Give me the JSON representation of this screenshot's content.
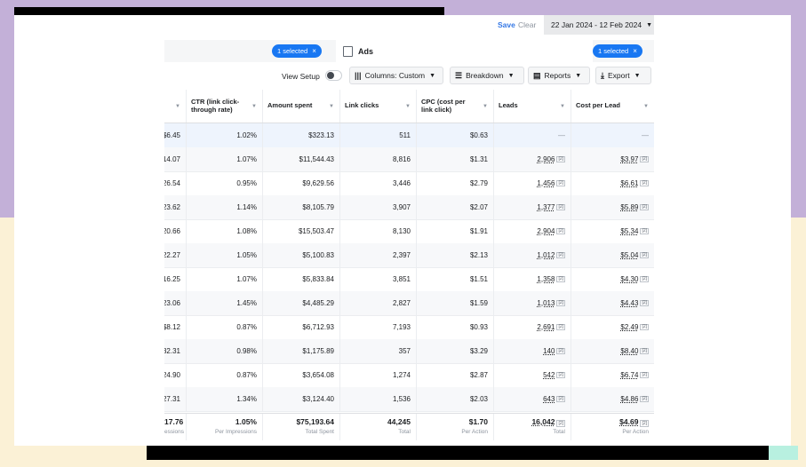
{
  "header": {
    "save_label": "Save",
    "clear_label": "Clear",
    "date_range": "22 Jan 2024 - 12 Feb 2024"
  },
  "filters": {
    "left_chip": "1 selected",
    "ads_tab_label": "Ads",
    "right_chip": "1 selected"
  },
  "toolbar": {
    "view_setup_label": "View Setup",
    "columns_label": "Columns: Custom",
    "breakdown_label": "Breakdown",
    "reports_label": "Reports",
    "export_label": "Export"
  },
  "table": {
    "columns": [
      "",
      "CTR (link click-through rate)",
      "Amount spent",
      "Link clicks",
      "CPC (cost per link click)",
      "Leads",
      "Cost per Lead"
    ],
    "rows": [
      {
        "c0": "$6.45",
        "ctr": "1.02%",
        "spent": "$323.13",
        "clicks": "511",
        "cpc": "$0.63",
        "leads": "—",
        "cpl": "—"
      },
      {
        "c0": "14.07",
        "ctr": "1.07%",
        "spent": "$11,544.43",
        "clicks": "8,816",
        "cpc": "$1.31",
        "leads": "2,906",
        "cpl": "$3.97"
      },
      {
        "c0": "26.54",
        "ctr": "0.95%",
        "spent": "$9,629.56",
        "clicks": "3,446",
        "cpc": "$2.79",
        "leads": "1,456",
        "cpl": "$6.61"
      },
      {
        "c0": "23.62",
        "ctr": "1.14%",
        "spent": "$8,105.79",
        "clicks": "3,907",
        "cpc": "$2.07",
        "leads": "1,377",
        "cpl": "$5.89"
      },
      {
        "c0": "20.66",
        "ctr": "1.08%",
        "spent": "$15,503.47",
        "clicks": "8,130",
        "cpc": "$1.91",
        "leads": "2,904",
        "cpl": "$5.34"
      },
      {
        "c0": "22.27",
        "ctr": "1.05%",
        "spent": "$5,100.83",
        "clicks": "2,397",
        "cpc": "$2.13",
        "leads": "1,012",
        "cpl": "$5.04"
      },
      {
        "c0": "16.25",
        "ctr": "1.07%",
        "spent": "$5,833.84",
        "clicks": "3,851",
        "cpc": "$1.51",
        "leads": "1,358",
        "cpl": "$4.30"
      },
      {
        "c0": "23.06",
        "ctr": "1.45%",
        "spent": "$4,485.29",
        "clicks": "2,827",
        "cpc": "$1.59",
        "leads": "1,013",
        "cpl": "$4.43"
      },
      {
        "c0": "$8.12",
        "ctr": "0.87%",
        "spent": "$6,712.93",
        "clicks": "7,193",
        "cpc": "$0.93",
        "leads": "2,691",
        "cpl": "$2.49"
      },
      {
        "c0": "32.31",
        "ctr": "0.98%",
        "spent": "$1,175.89",
        "clicks": "357",
        "cpc": "$3.29",
        "leads": "140",
        "cpl": "$8.40"
      },
      {
        "c0": "24.90",
        "ctr": "0.87%",
        "spent": "$3,654.08",
        "clicks": "1,274",
        "cpc": "$2.87",
        "leads": "542",
        "cpl": "$6.74"
      },
      {
        "c0": "27.31",
        "ctr": "1.34%",
        "spent": "$3,124.40",
        "clicks": "1,536",
        "cpc": "$2.03",
        "leads": "643",
        "cpl": "$4.86"
      }
    ],
    "totals": {
      "c0": {
        "value": "17.76",
        "label": "essions"
      },
      "ctr": {
        "value": "1.05%",
        "label": "Per Impressions"
      },
      "spent": {
        "value": "$75,193.64",
        "label": "Total Spent"
      },
      "clicks": {
        "value": "44,245",
        "label": "Total"
      },
      "cpc": {
        "value": "$1.70",
        "label": "Per Action"
      },
      "leads": {
        "value": "16,042",
        "label": "Total"
      },
      "cpl": {
        "value": "$4.69",
        "label": "Per Action"
      }
    },
    "footnote_marker": "[2]"
  },
  "colors": {
    "accent": "#1877f2",
    "link": "#3578e5",
    "bg_purple": "#c3b0d8",
    "bg_cream": "#fbf1d6"
  }
}
